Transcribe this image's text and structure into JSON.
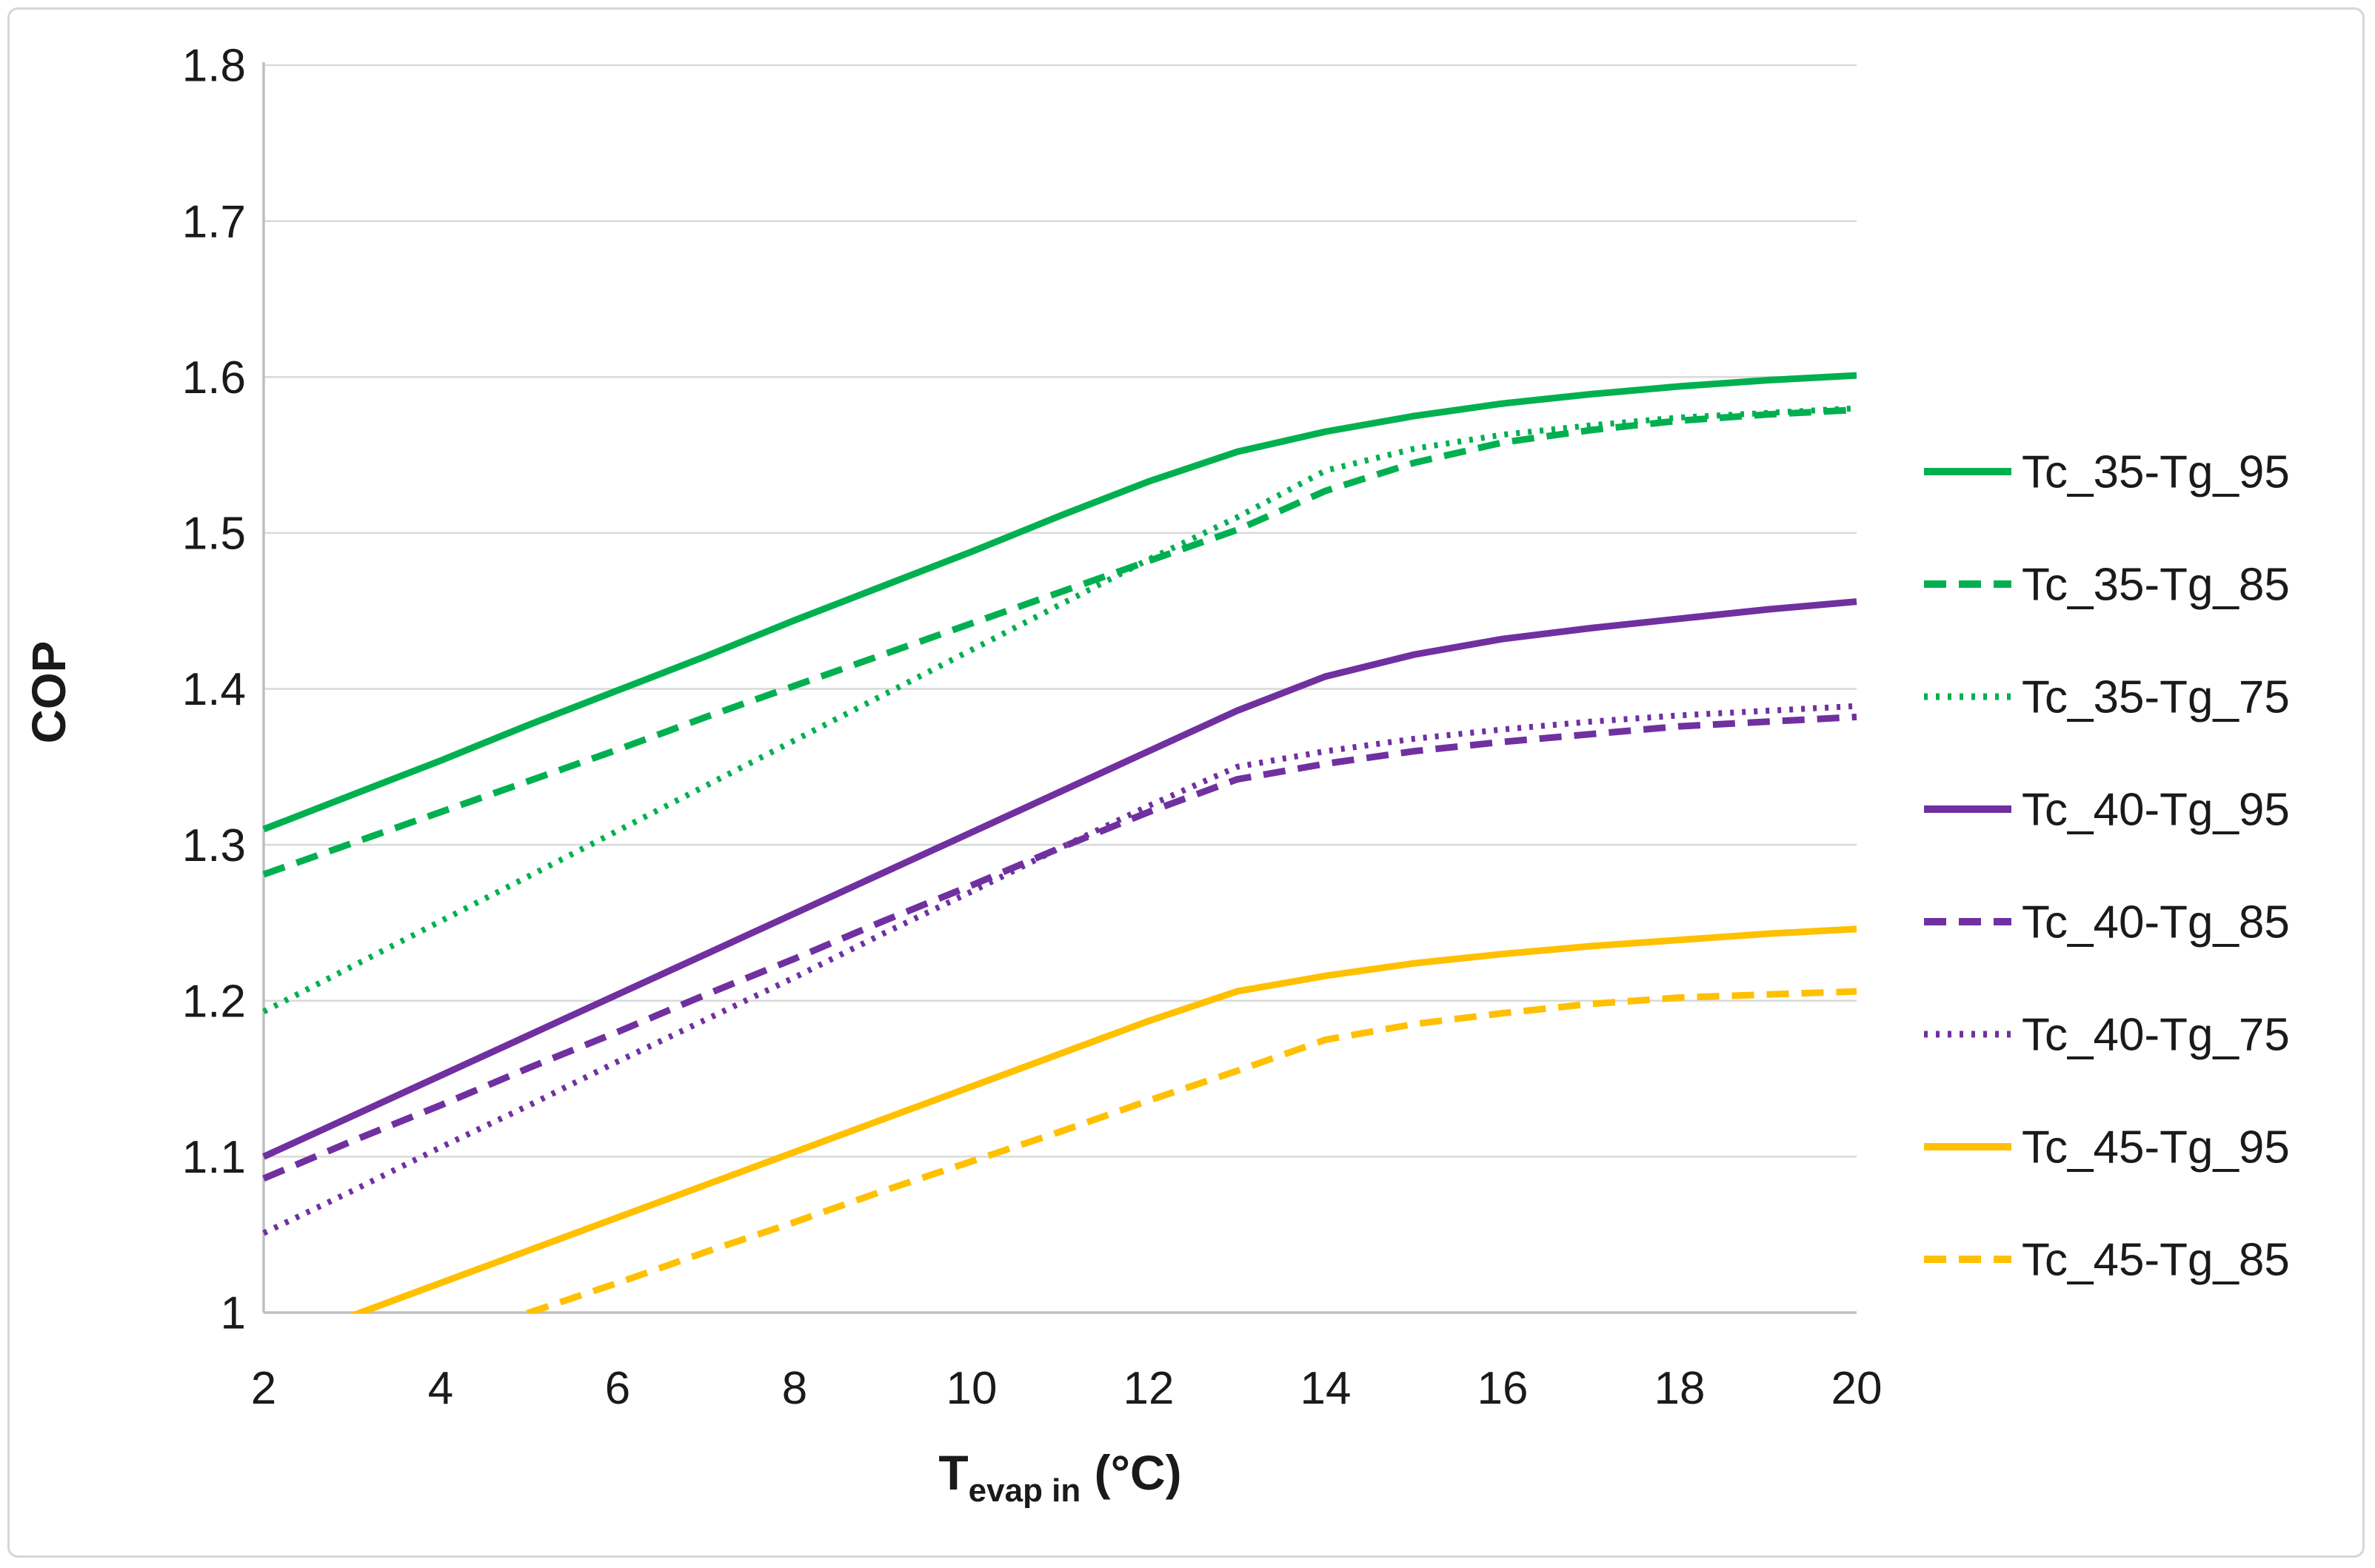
{
  "figure": {
    "background": "#ffffff",
    "border_color": "#d6d6d6"
  },
  "chart_data": {
    "type": "line",
    "title": "",
    "ylabel": "COP",
    "xlabel_base": "T",
    "xlabel_sub": "evap in",
    "xlabel_unit": "(°C)",
    "xlim": [
      2,
      20
    ],
    "ylim": [
      1.0,
      1.8
    ],
    "x_ticks": [
      2,
      4,
      6,
      8,
      10,
      12,
      14,
      16,
      18,
      20
    ],
    "y_ticks": [
      1.0,
      1.1,
      1.2,
      1.3,
      1.4,
      1.5,
      1.6,
      1.7,
      1.8
    ],
    "y_tick_labels": [
      "1",
      "1.1",
      "1.2",
      "1.3",
      "1.4",
      "1.5",
      "1.6",
      "1.7",
      "1.8"
    ],
    "grid": "horizontal",
    "grid_color": "#d9d9d9",
    "axis_color": "#bfbfbf",
    "text_color": "#1a1a1a",
    "legend_position": "right",
    "x": [
      2,
      3,
      4,
      5,
      6,
      7,
      8,
      9,
      10,
      11,
      12,
      13,
      14,
      15,
      16,
      17,
      18,
      19,
      20
    ],
    "series": [
      {
        "name": "Tc_35-Tg_95",
        "color": "#00B050",
        "style": "solid",
        "values": [
          1.31,
          1.332,
          1.354,
          1.377,
          1.399,
          1.421,
          1.444,
          1.466,
          1.488,
          1.511,
          1.533,
          1.552,
          1.565,
          1.575,
          1.583,
          1.589,
          1.594,
          1.598,
          1.601
        ]
      },
      {
        "name": "Tc_35-Tg_85",
        "color": "#00B050",
        "style": "dashed",
        "values": [
          1.281,
          1.301,
          1.321,
          1.341,
          1.361,
          1.382,
          1.402,
          1.422,
          1.442,
          1.462,
          1.482,
          1.502,
          1.527,
          1.545,
          1.558,
          1.566,
          1.572,
          1.576,
          1.579
        ]
      },
      {
        "name": "Tc_35-Tg_75",
        "color": "#00B050",
        "style": "dotted",
        "values": [
          1.193,
          1.222,
          1.251,
          1.28,
          1.309,
          1.338,
          1.367,
          1.396,
          1.425,
          1.454,
          1.483,
          1.51,
          1.54,
          1.554,
          1.563,
          1.569,
          1.574,
          1.577,
          1.58
        ]
      },
      {
        "name": "Tc_40-Tg_95",
        "color": "#7030A0",
        "style": "solid",
        "values": [
          1.1,
          1.126,
          1.152,
          1.178,
          1.204,
          1.23,
          1.256,
          1.282,
          1.308,
          1.334,
          1.36,
          1.386,
          1.408,
          1.422,
          1.432,
          1.439,
          1.445,
          1.451,
          1.456
        ]
      },
      {
        "name": "Tc_40-Tg_85",
        "color": "#7030A0",
        "style": "dashed",
        "values": [
          1.086,
          1.11,
          1.133,
          1.157,
          1.18,
          1.204,
          1.227,
          1.251,
          1.274,
          1.298,
          1.321,
          1.342,
          1.352,
          1.36,
          1.366,
          1.371,
          1.376,
          1.379,
          1.382
        ]
      },
      {
        "name": "Tc_40-Tg_75",
        "color": "#7030A0",
        "style": "dotted",
        "values": [
          1.051,
          1.078,
          1.106,
          1.133,
          1.161,
          1.188,
          1.215,
          1.243,
          1.27,
          1.298,
          1.325,
          1.35,
          1.36,
          1.368,
          1.374,
          1.379,
          1.383,
          1.386,
          1.389
        ]
      },
      {
        "name": "Tc_45-Tg_95",
        "color": "#FFC000",
        "style": "solid",
        "values": [
          0.977,
          0.998,
          1.019,
          1.04,
          1.061,
          1.082,
          1.103,
          1.124,
          1.145,
          1.166,
          1.187,
          1.206,
          1.216,
          1.224,
          1.23,
          1.235,
          1.239,
          1.243,
          1.246
        ]
      },
      {
        "name": "Tc_45-Tg_85",
        "color": "#FFC000",
        "style": "dashed",
        "values": [
          0.942,
          0.961,
          0.981,
          1.0,
          1.019,
          1.039,
          1.058,
          1.078,
          1.097,
          1.116,
          1.136,
          1.155,
          1.175,
          1.185,
          1.192,
          1.198,
          1.202,
          1.204,
          1.206
        ]
      }
    ]
  }
}
